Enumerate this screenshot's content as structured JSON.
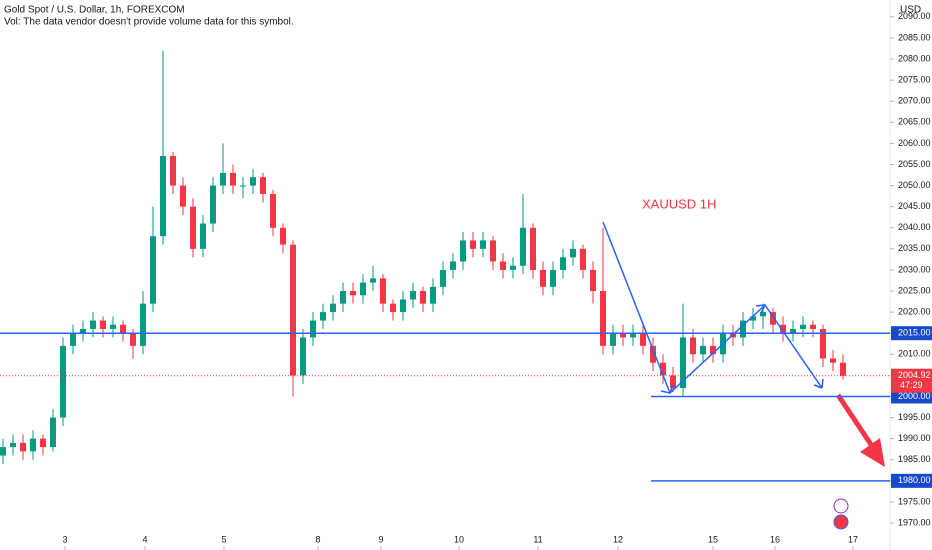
{
  "chart_data": {
    "type": "candlestick",
    "title": "Gold Spot / U.S. Dollar, 1h, FOREXCOM",
    "subtitle": "Vol: The data vendor doesn't provide volume data for this symbol.",
    "currency": "USD",
    "annotation": "XAUUSD 1H",
    "up_color": "#089981",
    "down_color": "#f23645",
    "open": [
      1986,
      1988,
      1989,
      1987,
      1990,
      1988,
      1995,
      2012,
      2015,
      2016,
      2018,
      2016,
      2017,
      2015,
      2012,
      2022,
      2038,
      2057,
      2050,
      2045,
      2035,
      2041,
      2050,
      2053,
      2050,
      2050,
      2052,
      2048,
      2040,
      2036,
      2005,
      2014,
      2018,
      2020,
      2022,
      2025,
      2024,
      2027,
      2028,
      2022,
      2020,
      2023,
      2025,
      2022,
      2026,
      2030,
      2032,
      2037,
      2035,
      2037,
      2032,
      2030,
      2031,
      2040,
      2030,
      2026,
      2030,
      2033,
      2035,
      2030,
      2025,
      2012,
      2015,
      2014,
      2015,
      2012,
      2008,
      2005,
      2002,
      2014,
      2010,
      2012,
      2010,
      2015,
      2014,
      2018,
      2019,
      2020,
      2017,
      2015,
      2016,
      2017,
      2016,
      2009,
      2008
    ],
    "high": [
      1990,
      1991,
      1991,
      1992,
      1991,
      1997,
      2014,
      2017,
      2018,
      2020,
      2019,
      2019,
      2018,
      2016,
      2025,
      2045,
      2082,
      2058,
      2052,
      2047,
      2043,
      2052,
      2060,
      2055,
      2052,
      2054,
      2053,
      2049,
      2041,
      2037,
      2016,
      2020,
      2022,
      2024,
      2027,
      2027,
      2029,
      2031,
      2029,
      2023,
      2025,
      2027,
      2026,
      2028,
      2032,
      2034,
      2039,
      2039,
      2039,
      2038,
      2034,
      2033,
      2048,
      2041,
      2032,
      2032,
      2035,
      2037,
      2036,
      2032,
      2040,
      2017,
      2017,
      2017,
      2017,
      2014,
      2010,
      2007,
      2022,
      2016,
      2014,
      2014,
      2017,
      2017,
      2020,
      2021,
      2022,
      2021,
      2019,
      2018,
      2019,
      2018,
      2017,
      2011,
      2010
    ],
    "low": [
      1984,
      1986,
      1985,
      1985,
      1986,
      1987,
      1993,
      2010,
      2013,
      2014,
      2014,
      2014,
      2013,
      2009,
      2010,
      2020,
      2036,
      2048,
      2043,
      2033,
      2033,
      2039,
      2048,
      2048,
      2047,
      2048,
      2046,
      2038,
      2034,
      2000,
      2003,
      2012,
      2016,
      2018,
      2020,
      2022,
      2022,
      2025,
      2020,
      2018,
      2018,
      2021,
      2020,
      2020,
      2024,
      2028,
      2030,
      2033,
      2033,
      2030,
      2028,
      2028,
      2029,
      2028,
      2024,
      2024,
      2028,
      2031,
      2028,
      2022,
      2010,
      2010,
      2012,
      2012,
      2010,
      2006,
      2003,
      2001,
      2000,
      2008,
      2008,
      2008,
      2008,
      2012,
      2012,
      2016,
      2016,
      2015,
      2013,
      2013,
      2014,
      2014,
      2007,
      2006,
      2004
    ],
    "close": [
      1988,
      1989,
      1987,
      1990,
      1988,
      1995,
      2012,
      2015,
      2016,
      2018,
      2016,
      2017,
      2015,
      2012,
      2022,
      2038,
      2057,
      2050,
      2045,
      2035,
      2041,
      2050,
      2053,
      2050,
      2050,
      2052,
      2048,
      2040,
      2036,
      2005,
      2014,
      2018,
      2020,
      2022,
      2025,
      2024,
      2027,
      2028,
      2022,
      2020,
      2023,
      2025,
      2022,
      2026,
      2030,
      2032,
      2037,
      2035,
      2037,
      2032,
      2030,
      2031,
      2040,
      2030,
      2026,
      2030,
      2033,
      2035,
      2030,
      2025,
      2012,
      2015,
      2014,
      2015,
      2012,
      2008,
      2005,
      2002,
      2014,
      2010,
      2012,
      2010,
      2015,
      2014,
      2018,
      2019,
      2020,
      2017,
      2015,
      2016,
      2017,
      2016,
      2009,
      2008,
      2004.92
    ],
    "xlim": [
      -0.3,
      88.7
    ],
    "xticks": [
      {
        "value": 6.2,
        "label": "3"
      },
      {
        "value": 14.2,
        "label": "4"
      },
      {
        "value": 22.1,
        "label": "5"
      },
      {
        "value": 31.5,
        "label": "8"
      },
      {
        "value": 37.8,
        "label": "9"
      },
      {
        "value": 45.6,
        "label": "10"
      },
      {
        "value": 53.5,
        "label": "11"
      },
      {
        "value": 61.5,
        "label": "12"
      },
      {
        "value": 71,
        "label": "15"
      },
      {
        "value": 77.2,
        "label": "16"
      },
      {
        "value": 85,
        "label": "17"
      }
    ],
    "ylim": [
      1963.6,
      2094
    ],
    "yticks": [
      {
        "value": 1970,
        "label": "1970.00"
      },
      {
        "value": 1975,
        "label": "1975.00"
      },
      {
        "value": 1980,
        "label": "1980.00"
      },
      {
        "value": 1985,
        "label": "1985.00"
      },
      {
        "value": 1990,
        "label": "1990.00"
      },
      {
        "value": 1995,
        "label": "1995.00"
      },
      {
        "value": 2000,
        "label": "2000.00"
      },
      {
        "value": 2005,
        "label": "2005.00"
      },
      {
        "value": 2010,
        "label": "2010.00"
      },
      {
        "value": 2015,
        "label": "2015.00"
      },
      {
        "value": 2020,
        "label": "2020.00"
      },
      {
        "value": 2025,
        "label": "2025.00"
      },
      {
        "value": 2030,
        "label": "2030.00"
      },
      {
        "value": 2035,
        "label": "2035.00"
      },
      {
        "value": 2040,
        "label": "2040.00"
      },
      {
        "value": 2045,
        "label": "2045.00"
      },
      {
        "value": 2050,
        "label": "2050.00"
      },
      {
        "value": 2055,
        "label": "2055.00"
      },
      {
        "value": 2060,
        "label": "2060.00"
      },
      {
        "value": 2065,
        "label": "2065.00"
      },
      {
        "value": 2070,
        "label": "2070.00"
      },
      {
        "value": 2075,
        "label": "2075.00"
      },
      {
        "value": 2080,
        "label": "2080.00"
      },
      {
        "value": 2085,
        "label": "2085.00"
      },
      {
        "value": 2090,
        "label": "2090.00"
      }
    ],
    "levels": [
      {
        "value": 2015,
        "label": "2015.00",
        "full": true
      },
      {
        "value": 2000,
        "label": "2000.00",
        "full": false
      },
      {
        "value": 1980,
        "label": "1980.00",
        "full": false
      }
    ],
    "level_color": "#2962ff",
    "last_price": 2004.92,
    "countdown": "47:29"
  }
}
